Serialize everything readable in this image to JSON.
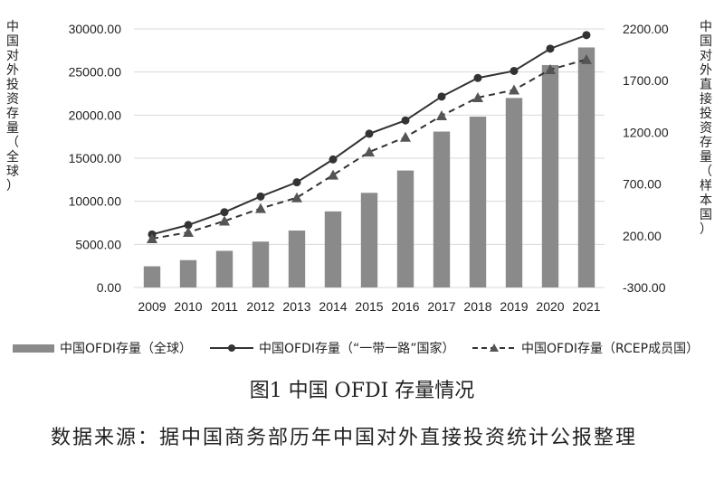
{
  "chart_data": {
    "type": "bar",
    "categories": [
      "2009",
      "2010",
      "2011",
      "2012",
      "2013",
      "2014",
      "2015",
      "2016",
      "2017",
      "2018",
      "2019",
      "2020",
      "2021"
    ],
    "y_left_label": "中国对外投资存量（全球）",
    "y_right_label": "中国对外直接投资存量（样本国）",
    "y_left_ticks": [
      "30000.00",
      "25000.00",
      "20000.00",
      "15000.00",
      "10000.00",
      "5000.00",
      "0.00"
    ],
    "y_right_ticks": [
      "2200.00",
      "1700.00",
      "1200.00",
      "700.00",
      "200.00",
      "-300.00"
    ],
    "ylim_left": [
      0,
      30000
    ],
    "ylim_right": [
      -300,
      2200
    ],
    "series": [
      {
        "name": "中国OFDI存量（全球）",
        "type": "bar",
        "axis": "left",
        "color": "#8a8a8a",
        "values": [
          2458,
          3172,
          4248,
          5319,
          6605,
          8827,
          10979,
          13574,
          18090,
          19823,
          21989,
          25807,
          27852
        ]
      },
      {
        "name": "中国OFDI存量（“一带一路”国家）",
        "type": "line",
        "axis": "right",
        "color": "#333333",
        "marker": "circle",
        "values": [
          213,
          304,
          428,
          580,
          717,
          938,
          1187,
          1315,
          1546,
          1726,
          1794,
          2009,
          2140
        ]
      },
      {
        "name": "中国OFDI存量（RCEP成员国）",
        "type": "line",
        "axis": "right",
        "color": "#333333",
        "marker": "triangle",
        "dash": true,
        "values": [
          172,
          233,
          342,
          464,
          568,
          787,
          1010,
          1153,
          1361,
          1536,
          1610,
          1807,
          1904
        ]
      }
    ]
  },
  "legend": [
    "中国OFDI存量（全球）",
    "中国OFDI存量（“一带一路”国家）",
    "中国OFDI存量（RCEP成员国）"
  ],
  "caption": "图1 中国 OFDI 存量情况",
  "source_note": "数据来源：据中国商务部历年中国对外直接投资统计公报整理"
}
